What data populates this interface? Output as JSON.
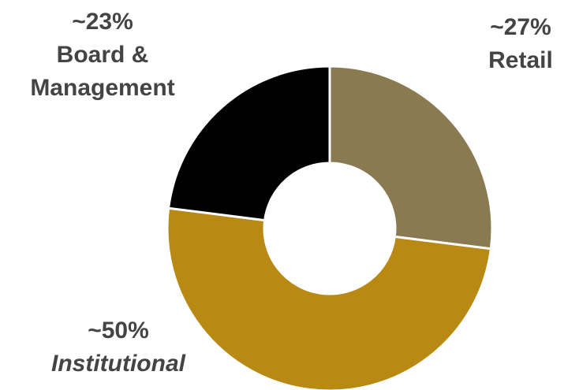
{
  "chart_data": {
    "type": "donut",
    "categories": [
      "Retail",
      "Institutional",
      "Board & Management"
    ],
    "values": [
      27,
      50,
      23
    ],
    "value_labels": [
      "~27%",
      "~50%",
      "~23%"
    ],
    "colors": [
      "#8a7a52",
      "#b88a14",
      "#000000"
    ]
  }
}
